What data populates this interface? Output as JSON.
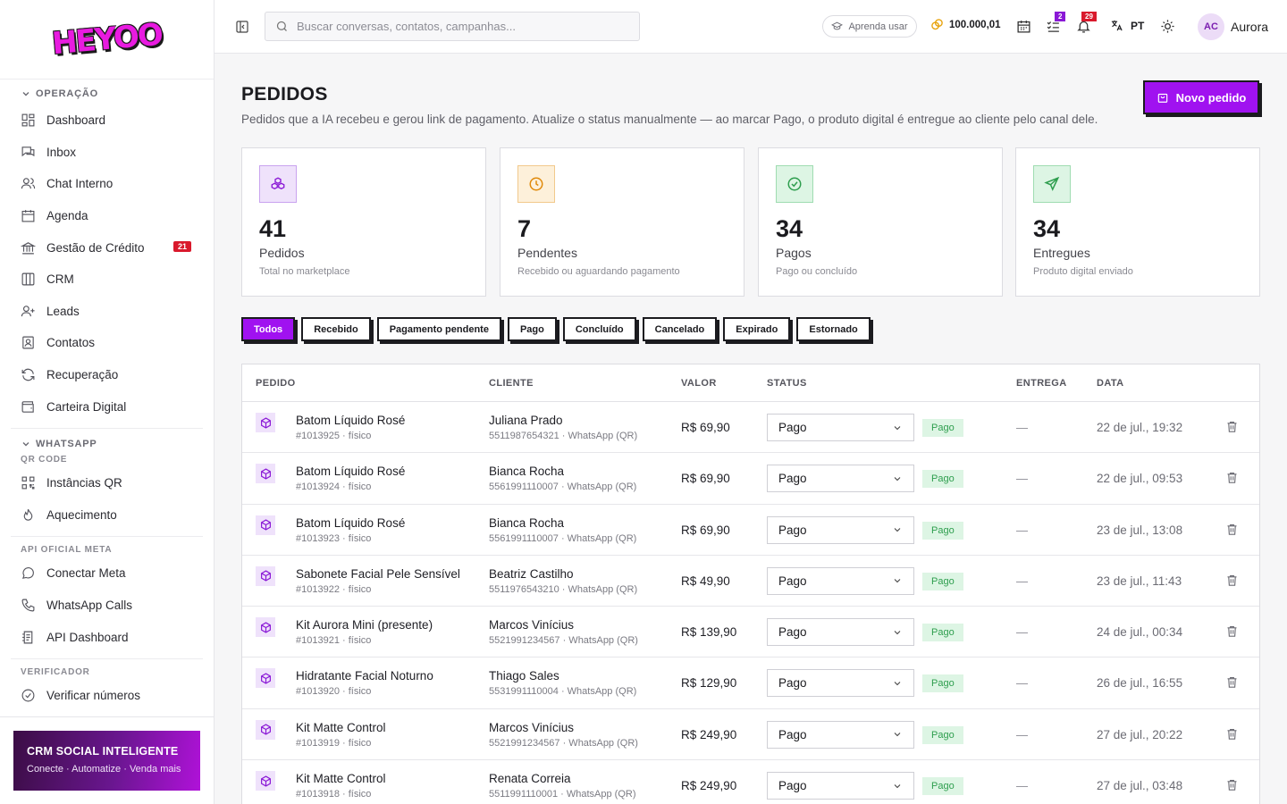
{
  "app": {
    "logo": "HEYOO"
  },
  "sidebar": {
    "sections": {
      "operacao": "OPERAÇÃO",
      "whatsapp": "WHATSAPP",
      "qr_code": "QR CODE",
      "api_oficial": "API OFICIAL META",
      "verificador": "VERIFICADOR"
    },
    "items": {
      "dashboard": "Dashboard",
      "inbox": "Inbox",
      "chat_interno": "Chat Interno",
      "agenda": "Agenda",
      "gestao_credito": "Gestão de Crédito",
      "gestao_credito_badge": "21",
      "crm": "CRM",
      "leads": "Leads",
      "contatos": "Contatos",
      "recuperacao": "Recuperação",
      "carteira": "Carteira Digital",
      "instancias_qr": "Instâncias QR",
      "aquecimento": "Aquecimento",
      "conectar_meta": "Conectar Meta",
      "whatsapp_calls": "WhatsApp Calls",
      "api_dashboard": "API Dashboard",
      "verificar_numeros": "Verificar números"
    },
    "promo": {
      "title": "CRM SOCIAL INTELIGENTE",
      "subtitle": "Conecte · Automatize · Venda mais"
    }
  },
  "topbar": {
    "search_placeholder": "Buscar conversas, contatos, campanhas...",
    "learn_label": "Aprenda usar",
    "credits": "100.000,01",
    "tasks_badge": "2",
    "notifications_badge": "29",
    "language": "PT",
    "avatar_initials": "AC",
    "user_name": "Aurora"
  },
  "page": {
    "title": "PEDIDOS",
    "subtitle": "Pedidos que a IA recebeu e gerou link de pagamento. Atualize o status manualmente — ao marcar Pago, o produto digital é entregue ao cliente pelo canal dele.",
    "new_button": "Novo pedido"
  },
  "stats": [
    {
      "value": "41",
      "label": "Pedidos",
      "hint": "Total no marketplace",
      "icon": "boxes-icon",
      "color": "#8a18d6"
    },
    {
      "value": "7",
      "label": "Pendentes",
      "hint": "Recebido ou aguardando pagamento",
      "icon": "clock-icon",
      "color": "#e08a0b"
    },
    {
      "value": "34",
      "label": "Pagos",
      "hint": "Pago ou concluído",
      "icon": "check-circle-icon",
      "color": "#2e9e4e"
    },
    {
      "value": "34",
      "label": "Entregues",
      "hint": "Produto digital enviado",
      "icon": "send-icon",
      "color": "#2e9e4e"
    }
  ],
  "filters": [
    "Todos",
    "Recebido",
    "Pagamento pendente",
    "Pago",
    "Concluído",
    "Cancelado",
    "Expirado",
    "Estornado"
  ],
  "table": {
    "headers": {
      "pedido": "PEDIDO",
      "cliente": "CLIENTE",
      "valor": "VALOR",
      "status": "STATUS",
      "entrega": "ENTREGA",
      "data": "DATA"
    },
    "rows": [
      {
        "product": "Batom Líquido Rosé",
        "id": "#1013925 · físico",
        "client": "Juliana Prado",
        "phone": "5511987654321 · WhatsApp (QR)",
        "value": "R$ 69,90",
        "status": "Pago",
        "badge": "Pago",
        "delivery": "—",
        "date": "22 de jul., 19:32"
      },
      {
        "product": "Batom Líquido Rosé",
        "id": "#1013924 · físico",
        "client": "Bianca Rocha",
        "phone": "5561991110007 · WhatsApp (QR)",
        "value": "R$ 69,90",
        "status": "Pago",
        "badge": "Pago",
        "delivery": "—",
        "date": "22 de jul., 09:53"
      },
      {
        "product": "Batom Líquido Rosé",
        "id": "#1013923 · físico",
        "client": "Bianca Rocha",
        "phone": "5561991110007 · WhatsApp (QR)",
        "value": "R$ 69,90",
        "status": "Pago",
        "badge": "Pago",
        "delivery": "—",
        "date": "23 de jul., 13:08"
      },
      {
        "product": "Sabonete Facial Pele Sensível",
        "id": "#1013922 · físico",
        "client": "Beatriz Castilho",
        "phone": "5511976543210 · WhatsApp (QR)",
        "value": "R$ 49,90",
        "status": "Pago",
        "badge": "Pago",
        "delivery": "—",
        "date": "23 de jul., 11:43"
      },
      {
        "product": "Kit Aurora Mini (presente)",
        "id": "#1013921 · físico",
        "client": "Marcos Vinícius",
        "phone": "5521991234567 · WhatsApp (QR)",
        "value": "R$ 139,90",
        "status": "Pago",
        "badge": "Pago",
        "delivery": "—",
        "date": "24 de jul., 00:34"
      },
      {
        "product": "Hidratante Facial Noturno",
        "id": "#1013920 · físico",
        "client": "Thiago Sales",
        "phone": "5531991110004 · WhatsApp (QR)",
        "value": "R$ 129,90",
        "status": "Pago",
        "badge": "Pago",
        "delivery": "—",
        "date": "26 de jul., 16:55"
      },
      {
        "product": "Kit Matte Control",
        "id": "#1013919 · físico",
        "client": "Marcos Vinícius",
        "phone": "5521991234567 · WhatsApp (QR)",
        "value": "R$ 249,90",
        "status": "Pago",
        "badge": "Pago",
        "delivery": "—",
        "date": "27 de jul., 20:22"
      },
      {
        "product": "Kit Matte Control",
        "id": "#1013918 · físico",
        "client": "Renata Correia",
        "phone": "5511991110001 · WhatsApp (QR)",
        "value": "R$ 249,90",
        "status": "Pago",
        "badge": "Pago",
        "delivery": "—",
        "date": "27 de jul., 03:48"
      }
    ]
  }
}
